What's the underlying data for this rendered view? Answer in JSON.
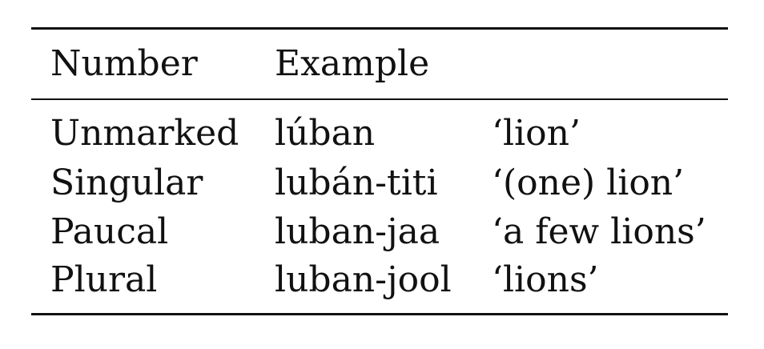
{
  "table": {
    "headers": [
      "Number",
      "Example"
    ],
    "rows": [
      {
        "number": "Unmarked",
        "form": "lúban",
        "gloss": "‘lion’"
      },
      {
        "number": "Singular",
        "form": "lubán-titi",
        "gloss": "‘(one) lion’"
      },
      {
        "number": "Paucal",
        "form": "luban-jaa",
        "gloss": "‘a few lions’"
      },
      {
        "number": "Plural",
        "form": "luban-jool",
        "gloss": "‘lions’"
      }
    ]
  }
}
